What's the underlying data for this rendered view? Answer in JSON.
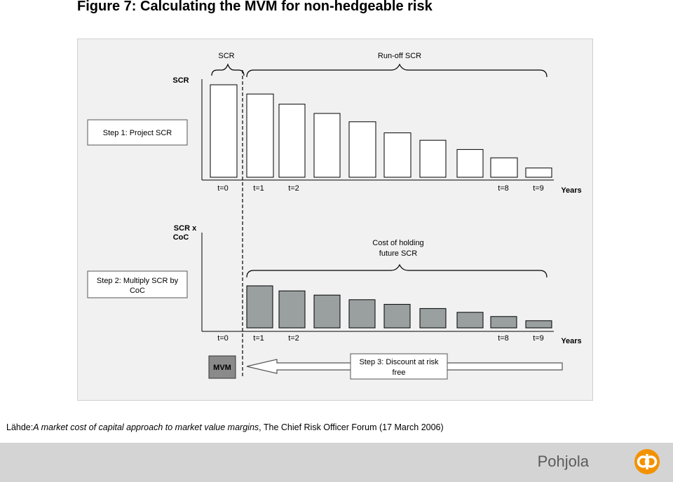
{
  "figure_title": "Figure 7: Calculating the MVM for non-hedgeable risk",
  "colors": {
    "panel_bg": "#f1f1f1",
    "white_bar": "#ffffff",
    "grey_bar": "#9aa0a0",
    "mvm_box": "#8a8a8a",
    "footer_bg": "#d4d4d4",
    "brand_orange": "#f39200"
  },
  "top_chart": {
    "y_label": "SCR",
    "scr_label": "SCR",
    "runoff_label": "Run-off SCR",
    "step_label": "Step 1: Project SCR",
    "x_ticks": [
      "t=0",
      "t=1",
      "t=2",
      "t=8",
      "t=9"
    ],
    "years_label": "Years",
    "bar_values": [
      100,
      90,
      79,
      69,
      60,
      48,
      40,
      30,
      21,
      10
    ]
  },
  "bottom_chart": {
    "y_label_line1": "SCR x",
    "y_label_line2": "CoC",
    "cost_label_line1": "Cost of holding",
    "cost_label_line2": "future SCR",
    "step_label_line1": "Step 2: Multiply SCR by",
    "step_label_line2": "CoC",
    "x_ticks": [
      "t=0",
      "t=1",
      "t=2",
      "t=8",
      "t=9"
    ],
    "years_label": "Years",
    "bar_values": [
      100,
      88,
      78,
      67,
      56,
      46,
      37,
      27,
      17,
      9
    ]
  },
  "mvm": {
    "box_label": "MVM",
    "step_label_line1": "Step 3: Discount at risk",
    "step_label_line2": "free"
  },
  "caption": {
    "prefix": "Lähde:",
    "italic": "A market cost of capital approach to market value margins",
    "suffix": ", The Chief Risk Officer Forum (17 March 2006)"
  },
  "footer": {
    "brand": "Pohjola",
    "logo_icon": "pohjola-logo-icon"
  }
}
